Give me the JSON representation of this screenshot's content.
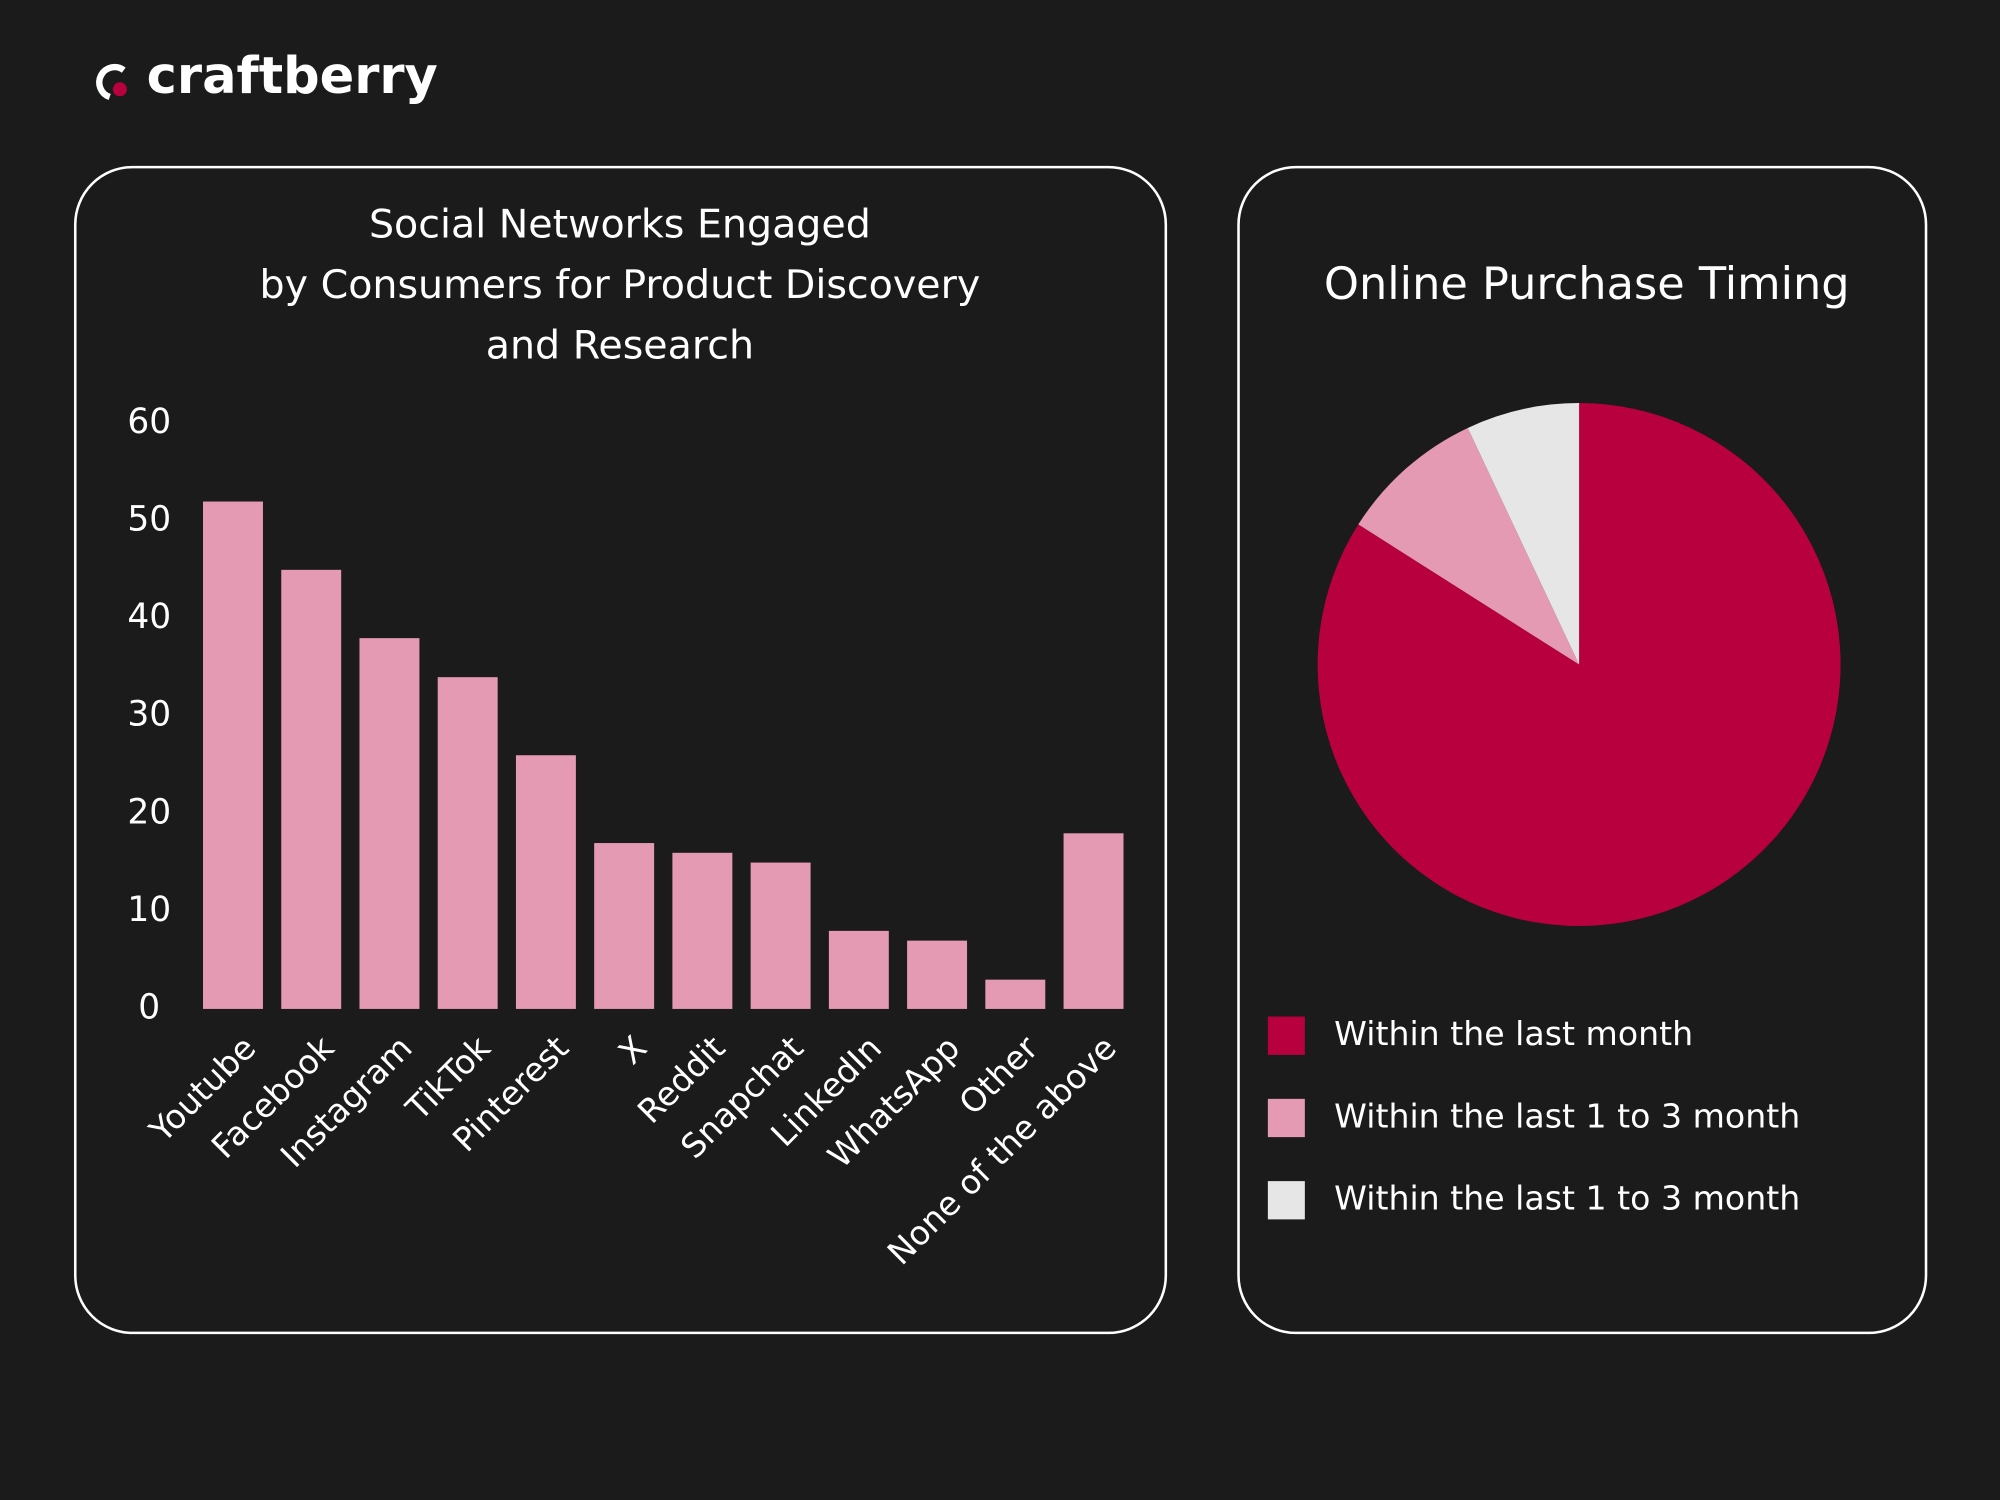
{
  "header": {
    "logo": "craftberry"
  },
  "chart_data": [
    {
      "type": "bar",
      "title": [
        "Social Networks Engaged",
        "by Consumers for Product Discovery",
        "and Research"
      ],
      "categories": [
        "Youtube",
        "Facebook",
        "Instagram",
        "TikTok",
        "Pinterest",
        "X",
        "Reddit",
        "Snapchat",
        "LinkedIn",
        "WhatsApp",
        "Other",
        "None of the above"
      ],
      "values": [
        52,
        45,
        38,
        34,
        26,
        17,
        16,
        15,
        8,
        7,
        3,
        18
      ],
      "color": "#e39ab2",
      "ylim": [
        0,
        60
      ],
      "yticks": [
        0,
        10,
        20,
        30,
        40,
        50,
        60
      ],
      "grid": false
    },
    {
      "type": "pie",
      "title": "Online Purchase Timing",
      "categories": [
        "Within the last month",
        "Within the last 1 to 3 month",
        "Within the last 1 to 3 month"
      ],
      "values": [
        84,
        9,
        7
      ],
      "colors": [
        "#b8003f",
        "#e39ab2",
        "#e6e6e6"
      ],
      "legend": "bottom"
    }
  ]
}
